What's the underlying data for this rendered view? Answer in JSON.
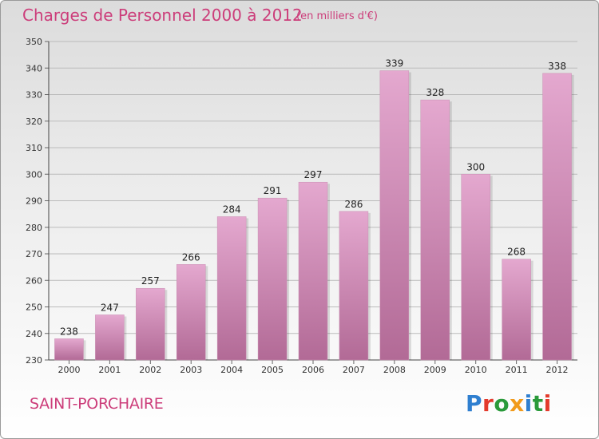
{
  "title": "Charges de Personnel 2000 à 2012",
  "subtitle": "(en milliers d'€)",
  "commune": "SAINT-PORCHAIRE",
  "logo": {
    "text": "Proxiti",
    "letters": [
      {
        "ch": "P",
        "color": "#2f7fd0"
      },
      {
        "ch": "r",
        "color": "#e33a2c"
      },
      {
        "ch": "o",
        "color": "#2a9a3a"
      },
      {
        "ch": "x",
        "color": "#f19a1b"
      },
      {
        "ch": "i",
        "color": "#2f7fd0"
      },
      {
        "ch": "t",
        "color": "#2a9a3a"
      },
      {
        "ch": "i",
        "color": "#e33a2c"
      }
    ]
  },
  "colors": {
    "bar_top": "#e4a8cf",
    "bar_bottom": "#b26a96",
    "text_pink": "#cc3d7a",
    "grid": "#bbbbbb"
  },
  "chart_data": {
    "type": "bar",
    "categories": [
      "2000",
      "2001",
      "2002",
      "2003",
      "2004",
      "2005",
      "2006",
      "2007",
      "2008",
      "2009",
      "2010",
      "2011",
      "2012"
    ],
    "values": [
      238,
      247,
      257,
      266,
      284,
      291,
      297,
      286,
      339,
      328,
      300,
      268,
      338
    ],
    "ylim": [
      230,
      350
    ],
    "yticks": [
      230,
      240,
      250,
      260,
      270,
      280,
      290,
      300,
      310,
      320,
      330,
      340,
      350
    ],
    "grid": true,
    "xlabel": "",
    "ylabel": ""
  }
}
